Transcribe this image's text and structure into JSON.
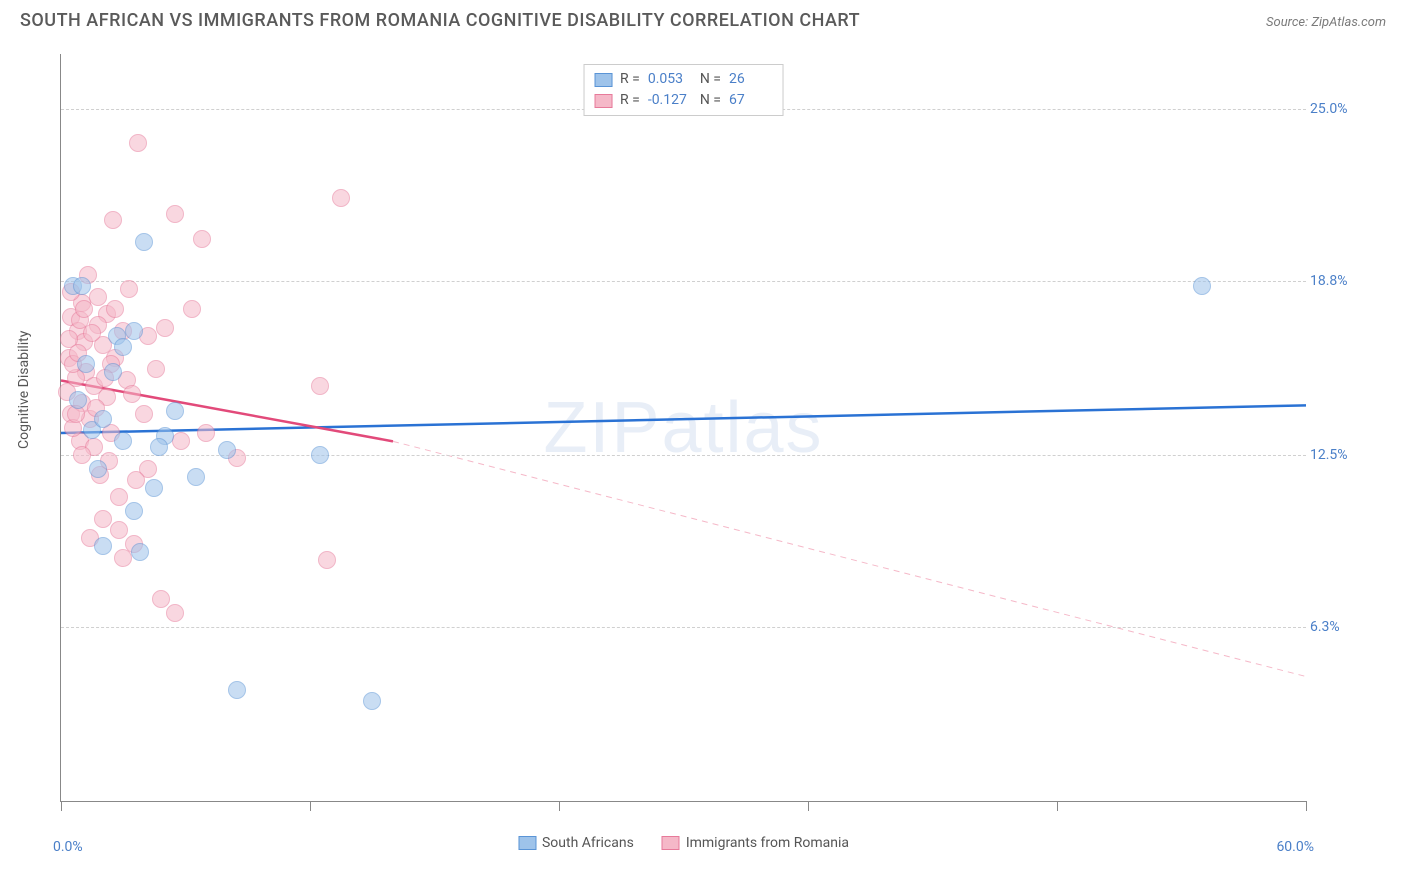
{
  "header": {
    "title": "SOUTH AFRICAN VS IMMIGRANTS FROM ROMANIA COGNITIVE DISABILITY CORRELATION CHART",
    "source_prefix": "Source: ",
    "source": "ZipAtlas.com"
  },
  "chart": {
    "type": "scatter",
    "ylabel": "Cognitive Disability",
    "watermark": "ZIPatlas",
    "xlim": [
      0,
      60
    ],
    "ylim": [
      0,
      27
    ],
    "background_color": "#ffffff",
    "grid_color": "#d0d0d0",
    "axis_color": "#888888",
    "tick_label_color": "#4a7fc8",
    "label_fontsize": 14,
    "title_fontsize": 18,
    "x_ticks": [
      0,
      12,
      24,
      36,
      48,
      60
    ],
    "x_tick_labels": {
      "0": "0.0%",
      "60": "60.0%"
    },
    "y_ticks": [
      6.3,
      12.5,
      18.8,
      25.0
    ],
    "y_tick_labels": [
      "6.3%",
      "12.5%",
      "18.8%",
      "25.0%"
    ],
    "marker_radius": 9,
    "marker_fill_opacity": 0.35,
    "series": [
      {
        "name": "South Africans",
        "color_fill": "#9ec3ea",
        "color_stroke": "#5a94d6",
        "R": "0.053",
        "N": "26",
        "trend": {
          "x1": 0,
          "y1": 13.3,
          "x2": 60,
          "y2": 14.3,
          "stroke": "#2a72d4",
          "width": 2.5,
          "dash": "none"
        },
        "points": [
          [
            0.6,
            18.6
          ],
          [
            1.0,
            18.6
          ],
          [
            4.0,
            20.2
          ],
          [
            2.7,
            16.8
          ],
          [
            3.0,
            16.4
          ],
          [
            1.5,
            13.4
          ],
          [
            3.0,
            13.0
          ],
          [
            5.0,
            13.2
          ],
          [
            4.7,
            12.8
          ],
          [
            8.0,
            12.7
          ],
          [
            12.5,
            12.5
          ],
          [
            4.5,
            11.3
          ],
          [
            3.5,
            10.5
          ],
          [
            8.5,
            4.0
          ],
          [
            15.0,
            3.6
          ],
          [
            55.0,
            18.6
          ],
          [
            2.5,
            15.5
          ],
          [
            6.5,
            11.7
          ],
          [
            2.0,
            9.2
          ],
          [
            3.8,
            9.0
          ],
          [
            5.5,
            14.1
          ],
          [
            1.2,
            15.8
          ],
          [
            0.8,
            14.5
          ],
          [
            2.0,
            13.8
          ],
          [
            1.8,
            12.0
          ],
          [
            3.5,
            17.0
          ]
        ]
      },
      {
        "name": "Immigrants from Romania",
        "color_fill": "#f5b8c8",
        "color_stroke": "#e77a9a",
        "R": "-0.127",
        "N": "67",
        "trend_solid": {
          "x1": 0,
          "y1": 15.2,
          "x2": 16,
          "y2": 13.0,
          "stroke": "#e24a7a",
          "width": 2.5
        },
        "trend_dash": {
          "x1": 16,
          "y1": 13.0,
          "x2": 60,
          "y2": 4.5,
          "stroke": "#f5b8c8",
          "width": 1,
          "dash": "6,5"
        },
        "points": [
          [
            3.7,
            23.8
          ],
          [
            2.5,
            21.0
          ],
          [
            5.5,
            21.2
          ],
          [
            13.5,
            21.8
          ],
          [
            6.8,
            20.3
          ],
          [
            1.0,
            18.0
          ],
          [
            0.5,
            17.5
          ],
          [
            0.8,
            17.0
          ],
          [
            2.2,
            17.6
          ],
          [
            3.0,
            17.0
          ],
          [
            1.8,
            18.2
          ],
          [
            2.0,
            16.5
          ],
          [
            2.6,
            16.0
          ],
          [
            4.2,
            16.8
          ],
          [
            5.0,
            17.1
          ],
          [
            0.4,
            16.0
          ],
          [
            1.2,
            15.5
          ],
          [
            1.6,
            15.0
          ],
          [
            0.7,
            15.3
          ],
          [
            2.4,
            15.8
          ],
          [
            3.2,
            15.2
          ],
          [
            0.5,
            14.0
          ],
          [
            1.0,
            14.4
          ],
          [
            1.4,
            13.8
          ],
          [
            2.2,
            14.6
          ],
          [
            0.9,
            13.0
          ],
          [
            1.6,
            12.8
          ],
          [
            3.0,
            8.8
          ],
          [
            4.8,
            7.3
          ],
          [
            5.5,
            6.8
          ],
          [
            4.2,
            12.0
          ],
          [
            5.8,
            13.0
          ],
          [
            7.0,
            13.3
          ],
          [
            8.5,
            12.4
          ],
          [
            12.5,
            15.0
          ],
          [
            12.8,
            8.7
          ],
          [
            3.5,
            9.3
          ],
          [
            2.8,
            11.0
          ],
          [
            3.6,
            11.6
          ],
          [
            4.0,
            14.0
          ],
          [
            1.1,
            16.6
          ],
          [
            0.6,
            15.8
          ],
          [
            1.8,
            17.2
          ],
          [
            2.4,
            13.3
          ],
          [
            0.3,
            14.8
          ],
          [
            3.3,
            18.5
          ],
          [
            1.3,
            19.0
          ],
          [
            6.3,
            17.8
          ],
          [
            0.4,
            16.7
          ],
          [
            0.8,
            16.2
          ],
          [
            1.5,
            16.9
          ],
          [
            0.9,
            17.4
          ],
          [
            1.7,
            14.2
          ],
          [
            2.1,
            15.3
          ],
          [
            1.0,
            12.5
          ],
          [
            0.6,
            13.5
          ],
          [
            1.9,
            11.8
          ],
          [
            2.3,
            12.3
          ],
          [
            3.4,
            14.7
          ],
          [
            0.5,
            18.4
          ],
          [
            1.1,
            17.8
          ],
          [
            4.6,
            15.6
          ],
          [
            2.8,
            9.8
          ],
          [
            1.4,
            9.5
          ],
          [
            0.7,
            14.0
          ],
          [
            2.0,
            10.2
          ],
          [
            2.6,
            17.8
          ]
        ]
      }
    ],
    "legend_top": {
      "R_label": "R =",
      "N_label": "N ="
    },
    "legend_bottom": [
      {
        "label": "South Africans",
        "fill": "#9ec3ea",
        "stroke": "#5a94d6"
      },
      {
        "label": "Immigrants from Romania",
        "fill": "#f5b8c8",
        "stroke": "#e77a9a"
      }
    ]
  }
}
